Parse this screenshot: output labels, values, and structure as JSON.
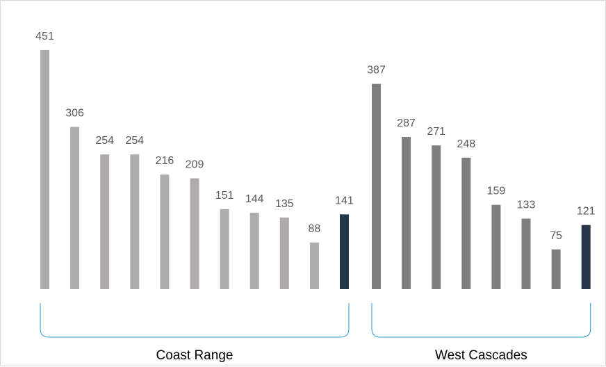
{
  "chart_data": {
    "type": "bar",
    "title": "",
    "xlabel": "",
    "ylabel": "",
    "ylim": [
      0,
      470
    ],
    "grid": false,
    "legend": "none",
    "groups": [
      {
        "name": "Coast Range",
        "values": [
          451,
          306,
          254,
          254,
          216,
          209,
          151,
          144,
          135,
          88,
          141
        ],
        "highlight_index": 10
      },
      {
        "name": "West Cascades",
        "values": [
          387,
          287,
          271,
          248,
          159,
          133,
          75,
          121
        ],
        "highlight_index": 7
      }
    ],
    "colors": {
      "coast_range_bar": "#afabab",
      "west_cascades_bar": "#7f7f7f",
      "highlight_bar": "#263648",
      "bracket": "#2e9bd6",
      "value_label": "#595959",
      "group_label": "#000000"
    }
  }
}
